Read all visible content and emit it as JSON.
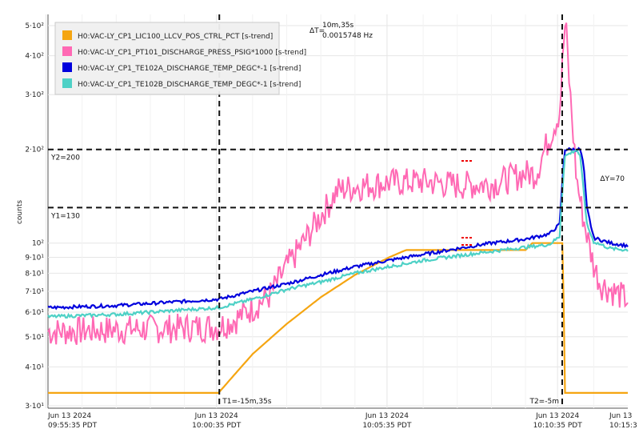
{
  "chart_data": {
    "type": "line",
    "ylabel": "counts",
    "y_scale": "log",
    "ylim": [
      30,
      550
    ],
    "y_ticks": [
      {
        "v": 30,
        "label": "3·10¹"
      },
      {
        "v": 40,
        "label": "4·10¹"
      },
      {
        "v": 50,
        "label": "5·10¹"
      },
      {
        "v": 60,
        "label": "6·10¹"
      },
      {
        "v": 70,
        "label": "7·10¹"
      },
      {
        "v": 80,
        "label": "8·10¹"
      },
      {
        "v": 90,
        "label": "9·10¹"
      },
      {
        "v": 100,
        "label": "10²"
      },
      {
        "v": 200,
        "label": "2·10²"
      },
      {
        "v": 300,
        "label": "3·10²"
      },
      {
        "v": 400,
        "label": "4·10²"
      },
      {
        "v": 500,
        "label": "5·10²"
      }
    ],
    "x_ticks": [
      {
        "line1": "Jun 13 2024",
        "line2": "09:55:35 PDT"
      },
      {
        "line1": "Jun 13 2024",
        "line2": "10:00:35 PDT"
      },
      {
        "line1": "Jun 13 2024",
        "line2": "10:05:35 PDT"
      },
      {
        "line1": "Jun 13 2024",
        "line2": "10:10:35 PDT"
      },
      {
        "line1": "Jun 13",
        "line2": "10:15:3"
      }
    ],
    "xlim_min": [
      0,
      17
    ],
    "series": [
      {
        "name": "H0:VAC-LY_CP1_LIC100_LLCV_POS_CTRL_PCT [s-trend]",
        "color": "#f5a511",
        "points": [
          [
            0,
            33
          ],
          [
            5,
            33
          ],
          [
            5.3,
            36
          ],
          [
            6,
            44
          ],
          [
            7,
            55
          ],
          [
            8,
            67
          ],
          [
            9,
            79
          ],
          [
            10,
            90
          ],
          [
            10.5,
            95
          ],
          [
            14,
            95
          ],
          [
            14.2,
            100
          ],
          [
            15.1,
            100
          ],
          [
            15.15,
            33
          ],
          [
            17,
            33
          ]
        ]
      },
      {
        "name": "H0:VAC-LY_CP1_PT101_DISCHARGE_PRESS_PSIG*1000 [s-trend]",
        "color": "#ff69b4",
        "points": [
          [
            0,
            52
          ],
          [
            5,
            54
          ],
          [
            5.5,
            57
          ],
          [
            6,
            62
          ],
          [
            6.5,
            68
          ],
          [
            7,
            84
          ],
          [
            7.5,
            101
          ],
          [
            8,
            123
          ],
          [
            8.5,
            148
          ],
          [
            9,
            152
          ],
          [
            10,
            157
          ],
          [
            11,
            158
          ],
          [
            12,
            154
          ],
          [
            13,
            155
          ],
          [
            14,
            168
          ],
          [
            14.3,
            167
          ],
          [
            14.6,
            205
          ],
          [
            15,
            265
          ],
          [
            15.1,
            400
          ],
          [
            15.15,
            500
          ],
          [
            15.2,
            470
          ],
          [
            15.3,
            310
          ],
          [
            15.5,
            160
          ],
          [
            15.7,
            120
          ],
          [
            15.9,
            95
          ],
          [
            16,
            85
          ],
          [
            16.2,
            74
          ],
          [
            17,
            66
          ]
        ]
      },
      {
        "name": "H0:VAC-LY_CP1_TE102A_DISCHARGE_TEMP_DEGC*-1 [s-trend]",
        "color": "#0000dd",
        "points": [
          [
            0,
            62
          ],
          [
            2,
            63
          ],
          [
            4,
            65
          ],
          [
            5,
            66
          ],
          [
            6,
            70
          ],
          [
            7,
            74
          ],
          [
            8,
            79
          ],
          [
            9,
            84
          ],
          [
            10,
            88
          ],
          [
            11,
            92
          ],
          [
            12,
            96
          ],
          [
            13,
            100
          ],
          [
            14,
            103
          ],
          [
            14.7,
            107
          ],
          [
            15,
            115
          ],
          [
            15.05,
            140
          ],
          [
            15.15,
            200
          ],
          [
            15.6,
            200
          ],
          [
            15.7,
            180
          ],
          [
            15.8,
            130
          ],
          [
            16,
            104
          ],
          [
            16.5,
            100
          ],
          [
            17,
            98
          ]
        ]
      },
      {
        "name": "H0:VAC-LY_CP1_TE102B_DISCHARGE_TEMP_DEGC*-1 [s-trend]",
        "color": "#4ed1c6",
        "points": [
          [
            0,
            58
          ],
          [
            2,
            59
          ],
          [
            4,
            61
          ],
          [
            5,
            62
          ],
          [
            6,
            66
          ],
          [
            7,
            71
          ],
          [
            8,
            75
          ],
          [
            9,
            80
          ],
          [
            10,
            84
          ],
          [
            11,
            88
          ],
          [
            12,
            91
          ],
          [
            13,
            94
          ],
          [
            14,
            97
          ],
          [
            14.7,
            99
          ],
          [
            15,
            105
          ],
          [
            15.05,
            130
          ],
          [
            15.15,
            190
          ],
          [
            15.5,
            200
          ],
          [
            15.6,
            190
          ],
          [
            15.7,
            150
          ],
          [
            15.8,
            115
          ],
          [
            16,
            101
          ],
          [
            16.5,
            96
          ],
          [
            17,
            95
          ]
        ]
      }
    ],
    "legend_position": "top-left",
    "annotations": {
      "t1": {
        "x": 5,
        "label": "T1=-15m,35s"
      },
      "t2": {
        "x": 15.1,
        "label": "T2=-5m"
      },
      "y1": {
        "y": 130,
        "label": "Y1=130"
      },
      "y2": {
        "y": 200,
        "label": "Y2=200"
      },
      "dy": {
        "label": "ΔY=70"
      },
      "dt": {
        "prefix": "ΔT=",
        "line1": "10m,35s",
        "line2": "0.0015748 Hz"
      }
    },
    "grid": true
  }
}
